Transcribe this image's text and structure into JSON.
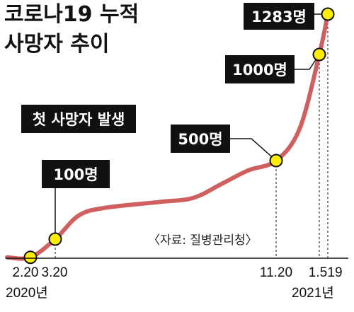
{
  "chart_data": {
    "type": "line",
    "title": [
      "코로나19 누적",
      "사망자 추이"
    ],
    "source": "〈자료: 질병관리청〉",
    "series_color": "#d06060",
    "marker_color": "#ffee00",
    "points": [
      {
        "x": "2020-02-20",
        "y": 1
      },
      {
        "x": "2020-03-20",
        "y": 100
      },
      {
        "x": "2020-04-15",
        "y": 220
      },
      {
        "x": "2020-05-15",
        "y": 260
      },
      {
        "x": "2020-07-15",
        "y": 290
      },
      {
        "x": "2020-08-20",
        "y": 310
      },
      {
        "x": "2020-09-20",
        "y": 380
      },
      {
        "x": "2020-10-20",
        "y": 450
      },
      {
        "x": "2020-11-20",
        "y": 500
      },
      {
        "x": "2020-12-15",
        "y": 650
      },
      {
        "x": "2021-01-05",
        "y": 1000
      },
      {
        "x": "2021-01-19",
        "y": 1283
      }
    ],
    "x_ticks": [
      {
        "x": "2020-02-20",
        "label": "2.20"
      },
      {
        "x": "2020-03-20",
        "label": "3.20"
      },
      {
        "x": "2020-11-20",
        "label": "11.20"
      },
      {
        "x": "2021-01-05",
        "label": "1.5"
      },
      {
        "x": "2021-01-19",
        "label": "19"
      }
    ],
    "year_labels": [
      "2020년",
      "2021년"
    ],
    "annotations": [
      {
        "x": "2020-02-20",
        "y": 1,
        "text": "첫 사망자 발생"
      },
      {
        "x": "2020-03-20",
        "y": 100,
        "text": "100명"
      },
      {
        "x": "2020-11-20",
        "y": 500,
        "text": "500명"
      },
      {
        "x": "2021-01-05",
        "y": 1000,
        "text": "1000명"
      },
      {
        "x": "2021-01-19",
        "y": 1283,
        "text": "1283명"
      }
    ]
  }
}
